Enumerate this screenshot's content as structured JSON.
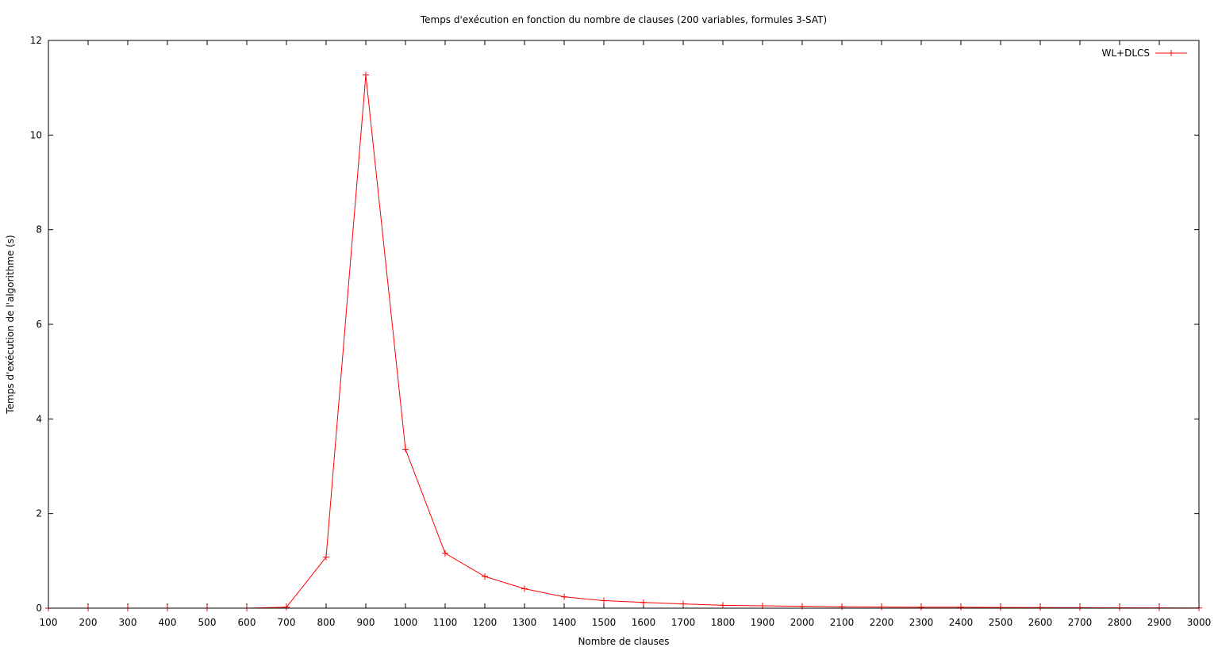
{
  "chart_data": {
    "type": "line",
    "title": "Temps d'exécution en fonction du nombre de clauses (200 variables, formules 3-SAT)",
    "xlabel": "Nombre de clauses",
    "ylabel": "Temps d'exécution de l'algorithme (s)",
    "xlim": [
      100,
      3000
    ],
    "ylim": [
      0,
      12
    ],
    "x_ticks": [
      100,
      200,
      300,
      400,
      500,
      600,
      700,
      800,
      900,
      1000,
      1100,
      1200,
      1300,
      1400,
      1500,
      1600,
      1700,
      1800,
      1900,
      2000,
      2100,
      2200,
      2300,
      2400,
      2500,
      2600,
      2700,
      2800,
      2900,
      3000
    ],
    "y_ticks": [
      0,
      2,
      4,
      6,
      8,
      10,
      12
    ],
    "grid": false,
    "legend_position": "top-right",
    "series": [
      {
        "name": "WL+DLCS",
        "color": "#ff0000",
        "marker": "plus",
        "x": [
          100,
          200,
          300,
          400,
          500,
          600,
          700,
          800,
          900,
          1000,
          1100,
          1200,
          1300,
          1400,
          1500,
          1600,
          1700,
          1800,
          1900,
          2000,
          2100,
          2200,
          2300,
          2400,
          2500,
          2600,
          2700,
          2800,
          2900,
          3000
        ],
        "y": [
          0,
          0,
          0,
          0,
          0,
          0,
          0.02,
          1.08,
          11.27,
          3.36,
          1.16,
          0.67,
          0.41,
          0.24,
          0.16,
          0.12,
          0.09,
          0.06,
          0.05,
          0.04,
          0.03,
          0.025,
          0.02,
          0.02,
          0.015,
          0.012,
          0.01,
          0.008,
          0.006,
          0.004
        ]
      }
    ]
  }
}
